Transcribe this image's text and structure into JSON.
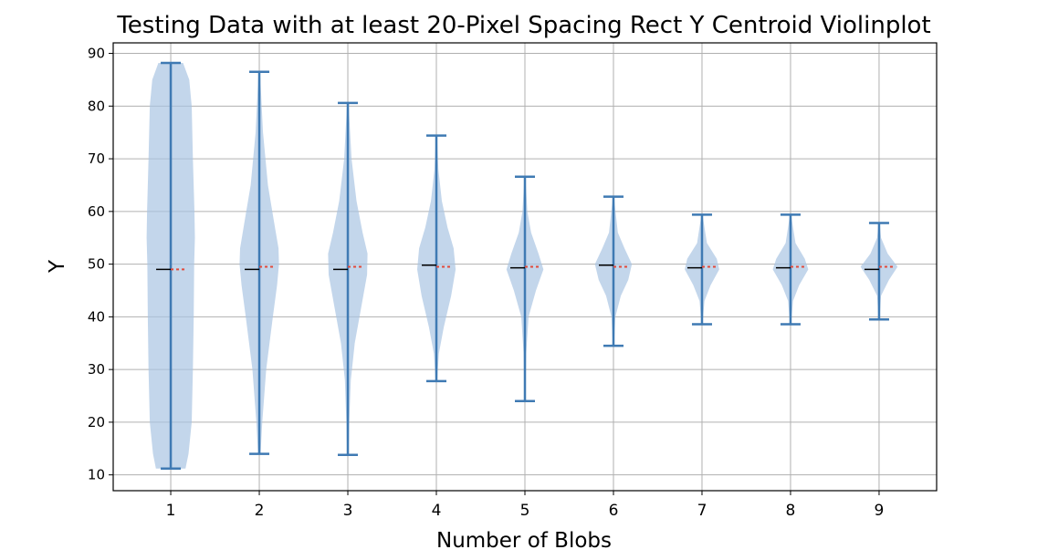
{
  "chart_data": {
    "type": "violin",
    "title": "Testing Data with at least 20-Pixel Spacing Rect Y Centroid Violinplot",
    "xlabel": "Number of Blobs",
    "ylabel": "Y",
    "ylim": [
      7,
      92
    ],
    "xlim": [
      0.35,
      9.65
    ],
    "yticks": [
      10,
      20,
      30,
      40,
      50,
      60,
      70,
      80,
      90
    ],
    "categories": [
      "1",
      "2",
      "3",
      "4",
      "5",
      "6",
      "7",
      "8",
      "9"
    ],
    "grid": true,
    "series": [
      {
        "x": 1,
        "min": 11.2,
        "max": 88.2,
        "median": 49.0,
        "mean": 49.0,
        "density": [
          [
            11.2,
            0.6
          ],
          [
            14,
            0.72
          ],
          [
            20,
            0.85
          ],
          [
            30,
            0.9
          ],
          [
            40,
            0.93
          ],
          [
            50,
            0.95
          ],
          [
            55,
            0.98
          ],
          [
            60,
            0.96
          ],
          [
            70,
            0.9
          ],
          [
            80,
            0.85
          ],
          [
            85,
            0.75
          ],
          [
            88.2,
            0.5
          ]
        ]
      },
      {
        "x": 2,
        "min": 14.0,
        "max": 86.5,
        "median": 49.0,
        "mean": 49.5,
        "density": [
          [
            14,
            0.05
          ],
          [
            20,
            0.12
          ],
          [
            30,
            0.28
          ],
          [
            40,
            0.55
          ],
          [
            46,
            0.72
          ],
          [
            50,
            0.8
          ],
          [
            53,
            0.78
          ],
          [
            58,
            0.6
          ],
          [
            65,
            0.35
          ],
          [
            75,
            0.15
          ],
          [
            86.5,
            0.03
          ]
        ]
      },
      {
        "x": 3,
        "min": 13.8,
        "max": 80.6,
        "median": 49.0,
        "mean": 49.5,
        "density": [
          [
            13.8,
            0.03
          ],
          [
            20,
            0.06
          ],
          [
            28,
            0.12
          ],
          [
            35,
            0.28
          ],
          [
            42,
            0.55
          ],
          [
            48,
            0.78
          ],
          [
            52,
            0.8
          ],
          [
            56,
            0.6
          ],
          [
            62,
            0.35
          ],
          [
            70,
            0.15
          ],
          [
            80.6,
            0.03
          ]
        ]
      },
      {
        "x": 4,
        "min": 27.8,
        "max": 74.4,
        "median": 49.8,
        "mean": 49.5,
        "density": [
          [
            27.8,
            0.03
          ],
          [
            33,
            0.1
          ],
          [
            38,
            0.3
          ],
          [
            44,
            0.6
          ],
          [
            49,
            0.78
          ],
          [
            53,
            0.7
          ],
          [
            57,
            0.45
          ],
          [
            62,
            0.22
          ],
          [
            68,
            0.08
          ],
          [
            74.4,
            0.02
          ]
        ]
      },
      {
        "x": 5,
        "min": 24.0,
        "max": 66.6,
        "median": 49.3,
        "mean": 49.5,
        "density": [
          [
            24,
            0.02
          ],
          [
            33,
            0.05
          ],
          [
            40,
            0.15
          ],
          [
            45,
            0.45
          ],
          [
            49,
            0.75
          ],
          [
            52,
            0.55
          ],
          [
            56,
            0.25
          ],
          [
            60,
            0.1
          ],
          [
            66.6,
            0.02
          ]
        ]
      },
      {
        "x": 6,
        "min": 34.5,
        "max": 62.8,
        "median": 49.8,
        "mean": 49.5,
        "density": [
          [
            34.5,
            0.02
          ],
          [
            40,
            0.08
          ],
          [
            44,
            0.3
          ],
          [
            47,
            0.6
          ],
          [
            50,
            0.75
          ],
          [
            53,
            0.45
          ],
          [
            56,
            0.18
          ],
          [
            62.8,
            0.02
          ]
        ]
      },
      {
        "x": 7,
        "min": 38.6,
        "max": 59.4,
        "median": 49.3,
        "mean": 49.5,
        "density": [
          [
            38.6,
            0.02
          ],
          [
            43,
            0.1
          ],
          [
            46,
            0.35
          ],
          [
            49,
            0.7
          ],
          [
            51,
            0.6
          ],
          [
            54,
            0.2
          ],
          [
            59.4,
            0.02
          ]
        ]
      },
      {
        "x": 8,
        "min": 38.6,
        "max": 59.4,
        "median": 49.3,
        "mean": 49.5,
        "density": [
          [
            38.6,
            0.02
          ],
          [
            43,
            0.1
          ],
          [
            46,
            0.35
          ],
          [
            49,
            0.72
          ],
          [
            51,
            0.58
          ],
          [
            54,
            0.2
          ],
          [
            59.4,
            0.02
          ]
        ]
      },
      {
        "x": 9,
        "min": 39.5,
        "max": 57.8,
        "median": 49.0,
        "mean": 49.5,
        "density": [
          [
            39.5,
            0.02
          ],
          [
            44,
            0.08
          ],
          [
            47,
            0.4
          ],
          [
            49.5,
            0.75
          ],
          [
            52,
            0.35
          ],
          [
            55,
            0.08
          ],
          [
            57.8,
            0.02
          ]
        ]
      }
    ],
    "colors": {
      "body": "#a9c4e2",
      "whisker": "#3f7ab3",
      "median": "#000000",
      "mean": "#e24a3b",
      "grid": "#b0b0b0"
    }
  }
}
